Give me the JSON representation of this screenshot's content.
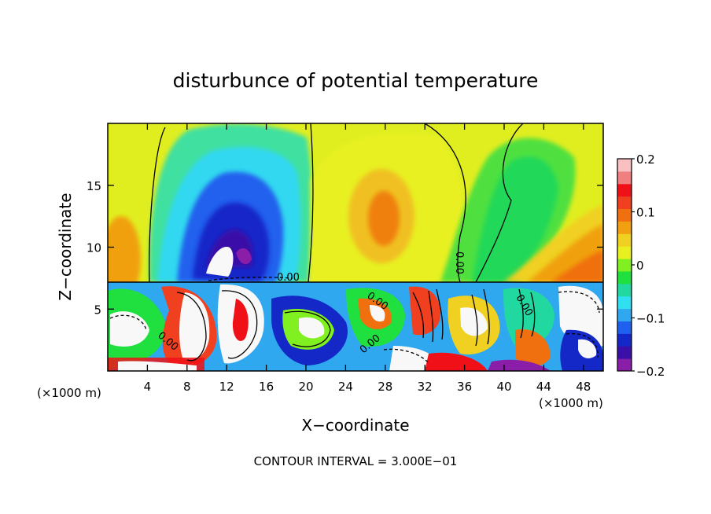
{
  "chart_data": {
    "type": "heatmap",
    "title": "disturbunce of potential temperature",
    "xlabel": "X−coordinate",
    "ylabel": "Z−coordinate",
    "x_unit": "(×1000 m)",
    "y_unit": "(×1000 m)",
    "xlim": [
      0,
      50
    ],
    "ylim": [
      0,
      20
    ],
    "xticks": [
      4,
      8,
      12,
      16,
      20,
      24,
      28,
      32,
      36,
      40,
      44,
      48
    ],
    "yticks": [
      5,
      10,
      15
    ],
    "colorbar": {
      "range": [
        -0.2,
        0.2
      ],
      "ticks": [
        "0.2",
        "0.1",
        "0",
        "−0.1",
        "−0.2"
      ],
      "colors": [
        "#8b1ea8",
        "#3a10a8",
        "#1428c8",
        "#2060ee",
        "#30a8f0",
        "#30e0f0",
        "#20d8a0",
        "#20e040",
        "#80f020",
        "#e8f020",
        "#f0d020",
        "#f0a010",
        "#f07010",
        "#f04020",
        "#f01018",
        "#f08080",
        "#f8c0c0"
      ]
    },
    "contour_labels": [
      "0.00",
      "0.00",
      "0.00",
      "0.00",
      "0.00",
      "0.00"
    ],
    "footer": "CONTOUR INTERVAL = 3.000E−01"
  }
}
